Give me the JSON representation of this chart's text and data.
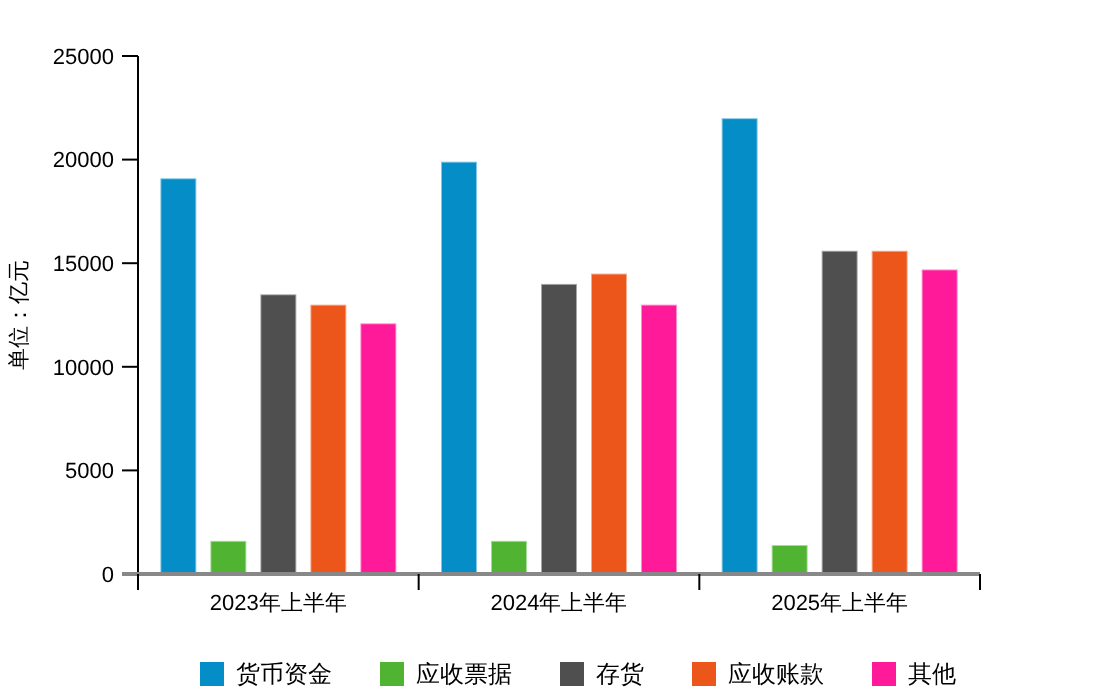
{
  "chart_data": {
    "type": "bar",
    "ylabel": "单位：亿元",
    "categories": [
      "2023年上半年",
      "2024年上半年",
      "2025年上半年"
    ],
    "series": [
      {
        "name": "货币资金",
        "color": "#058dc7",
        "values": [
          19100,
          19900,
          22000
        ]
      },
      {
        "name": "应收票据",
        "color": "#50b432",
        "values": [
          1600,
          1600,
          1400
        ]
      },
      {
        "name": "存货",
        "color": "#4f4f4f",
        "values": [
          13500,
          14000,
          15600
        ]
      },
      {
        "name": "应收账款",
        "color": "#ed561b",
        "values": [
          13000,
          14500,
          15600
        ]
      },
      {
        "name": "其他",
        "color": "#ff1a9a",
        "values": [
          12100,
          13000,
          14700
        ]
      }
    ],
    "ylim": [
      0,
      25000
    ],
    "yticks": [
      0,
      5000,
      10000,
      15000,
      20000,
      25000
    ],
    "grid": false,
    "legend": "bottom"
  }
}
